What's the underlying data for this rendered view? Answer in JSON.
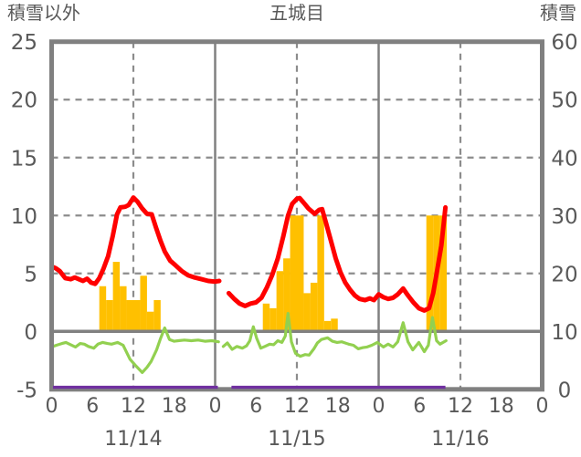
{
  "header": {
    "left_axis_title": "積雪以外",
    "chart_title": "五城目",
    "right_axis_title": "積雪"
  },
  "colors": {
    "frame": "#808080",
    "gridline": "#8c8c8c",
    "text": "#595959",
    "red_line": "#ff0000",
    "orange_bar": "#ffc000",
    "green_line": "#92d050",
    "purple_line": "#7030a0",
    "background": "#ffffff"
  },
  "chart_data": {
    "type": "composite",
    "title": "五城目",
    "left_axis": {
      "title": "積雪以外",
      "range": [
        -5,
        25
      ],
      "ticks": [
        25,
        20,
        15,
        10,
        5,
        0,
        -5
      ],
      "dashed_gridlines": [
        20,
        15,
        10,
        5
      ],
      "solid_gridlines": [
        0
      ]
    },
    "right_axis": {
      "title": "積雪",
      "range": [
        0,
        60
      ],
      "ticks": [
        60,
        50,
        40,
        30,
        20,
        10,
        0
      ]
    },
    "x_axis": {
      "range_hours": [
        0,
        72
      ],
      "tick_hours": [
        0,
        6,
        12,
        18,
        24,
        30,
        36,
        42,
        48,
        54,
        60,
        66,
        72
      ],
      "tick_labels": [
        "0",
        "6",
        "12",
        "18",
        "0",
        "6",
        "12",
        "18",
        "0",
        "6",
        "12",
        "18",
        "0"
      ],
      "date_labels": [
        "11/14",
        "11/15",
        "11/16"
      ],
      "date_center_hours": [
        12,
        36,
        60
      ],
      "solid_gridline_hours": [
        24,
        48
      ],
      "dashed_gridline_hours": [
        12,
        36,
        60
      ]
    },
    "series": [
      {
        "id": "orange-bars",
        "type": "bar",
        "axis": "left",
        "color": "#ffc000",
        "bars": [
          [
            7,
            3.9
          ],
          [
            8,
            2.7
          ],
          [
            9,
            6.0
          ],
          [
            10,
            3.9
          ],
          [
            11,
            2.7
          ],
          [
            12,
            2.7
          ],
          [
            13,
            4.8
          ],
          [
            14,
            1.7
          ],
          [
            15,
            2.7
          ],
          [
            31,
            2.4
          ],
          [
            32,
            2.0
          ],
          [
            33,
            5.2
          ],
          [
            34,
            6.3
          ],
          [
            35,
            10
          ],
          [
            36,
            10
          ],
          [
            37,
            3.3
          ],
          [
            38,
            4.2
          ],
          [
            39,
            10
          ],
          [
            40,
            0.9
          ],
          [
            41,
            1.1
          ],
          [
            55,
            10
          ],
          [
            56,
            10
          ],
          [
            57,
            10
          ]
        ]
      },
      {
        "id": "red-line",
        "type": "line",
        "axis": "left",
        "color": "#ff0000",
        "width": 5,
        "segments": [
          [
            [
              0,
              5.6
            ],
            [
              0.6,
              5.45
            ],
            [
              1.2,
              5.2
            ],
            [
              2,
              4.6
            ],
            [
              2.8,
              4.5
            ],
            [
              3.4,
              4.65
            ],
            [
              4,
              4.5
            ],
            [
              4.6,
              4.35
            ],
            [
              5.2,
              4.55
            ],
            [
              5.8,
              4.2
            ],
            [
              6.4,
              4.1
            ],
            [
              7,
              4.6
            ],
            [
              7.6,
              5.4
            ],
            [
              8.3,
              6.5
            ],
            [
              9,
              8.3
            ],
            [
              9.6,
              10.1
            ],
            [
              10.1,
              10.7
            ],
            [
              10.8,
              10.75
            ],
            [
              11.3,
              10.9
            ],
            [
              12,
              11.55
            ],
            [
              12.6,
              11.2
            ],
            [
              13.3,
              10.6
            ],
            [
              14,
              10.15
            ],
            [
              14.7,
              10.1
            ],
            [
              15.3,
              9.0
            ],
            [
              16,
              7.8
            ],
            [
              16.6,
              6.9
            ],
            [
              17.4,
              6.1
            ],
            [
              18.2,
              5.7
            ],
            [
              19.1,
              5.2
            ],
            [
              20,
              4.85
            ],
            [
              21,
              4.65
            ],
            [
              22,
              4.5
            ],
            [
              23,
              4.35
            ],
            [
              24,
              4.3
            ],
            [
              24.6,
              4.35
            ]
          ],
          [
            [
              26,
              3.3
            ],
            [
              26.8,
              2.8
            ],
            [
              27.6,
              2.4
            ],
            [
              28.4,
              2.2
            ],
            [
              29.2,
              2.4
            ],
            [
              30,
              2.5
            ],
            [
              30.8,
              2.9
            ],
            [
              31.6,
              3.8
            ],
            [
              32.4,
              4.9
            ],
            [
              33.2,
              6.3
            ],
            [
              34,
              8.2
            ],
            [
              34.7,
              10.0
            ],
            [
              35.3,
              11.0
            ],
            [
              36,
              11.45
            ],
            [
              36.4,
              11.5
            ],
            [
              37,
              11.1
            ],
            [
              37.7,
              10.6
            ],
            [
              38.6,
              10.15
            ],
            [
              39.3,
              10.5
            ],
            [
              39.7,
              10.55
            ],
            [
              40.3,
              9.3
            ],
            [
              41,
              7.8
            ],
            [
              41.7,
              6.3
            ],
            [
              42.4,
              5.1
            ],
            [
              43.1,
              4.2
            ],
            [
              43.8,
              3.6
            ],
            [
              44.5,
              3.1
            ],
            [
              45.2,
              2.8
            ],
            [
              46,
              2.7
            ],
            [
              46.7,
              2.85
            ],
            [
              47.3,
              2.7
            ],
            [
              48,
              3.2
            ],
            [
              48.7,
              2.95
            ],
            [
              49.4,
              2.8
            ],
            [
              50.1,
              2.9
            ],
            [
              50.8,
              3.2
            ],
            [
              51.6,
              3.7
            ],
            [
              52.3,
              3.1
            ],
            [
              53.1,
              2.5
            ],
            [
              53.9,
              2.0
            ],
            [
              54.7,
              1.8
            ],
            [
              55.4,
              2.0
            ],
            [
              56,
              3.3
            ],
            [
              56.6,
              5.3
            ],
            [
              57.2,
              7.4
            ],
            [
              57.8,
              10.7
            ]
          ]
        ]
      },
      {
        "id": "green-line",
        "type": "line",
        "axis": "left",
        "color": "#92d050",
        "width": 3.2,
        "segments": [
          [
            [
              0,
              -1.35
            ],
            [
              0.7,
              -1.2
            ],
            [
              1.5,
              -1.05
            ],
            [
              2.1,
              -0.95
            ],
            [
              2.8,
              -1.15
            ],
            [
              3.5,
              -1.35
            ],
            [
              4.2,
              -1.05
            ],
            [
              4.8,
              -1.1
            ],
            [
              5.4,
              -1.3
            ],
            [
              6.2,
              -1.45
            ],
            [
              6.8,
              -1.1
            ],
            [
              7.5,
              -0.95
            ],
            [
              8.2,
              -1.05
            ],
            [
              8.8,
              -1.1
            ],
            [
              9.7,
              -0.95
            ],
            [
              10.5,
              -1.2
            ],
            [
              11.5,
              -2.4
            ],
            [
              12.4,
              -3.0
            ],
            [
              13.3,
              -3.55
            ],
            [
              14,
              -3.1
            ],
            [
              14.6,
              -2.6
            ],
            [
              15.4,
              -1.6
            ],
            [
              16,
              -0.6
            ],
            [
              16.6,
              0.3
            ],
            [
              17.3,
              -0.7
            ],
            [
              18,
              -0.85
            ],
            [
              18.6,
              -0.8
            ],
            [
              19.5,
              -0.75
            ],
            [
              20.5,
              -0.8
            ],
            [
              21.5,
              -0.75
            ],
            [
              22.5,
              -0.85
            ],
            [
              23.5,
              -0.8
            ],
            [
              24.5,
              -0.9
            ]
          ],
          [
            [
              25.2,
              -1.3
            ],
            [
              25.8,
              -1.0
            ],
            [
              26.5,
              -1.55
            ],
            [
              27.2,
              -1.3
            ],
            [
              28,
              -1.45
            ],
            [
              28.6,
              -1.25
            ],
            [
              29.1,
              -0.8
            ],
            [
              29.6,
              0.4
            ],
            [
              30.1,
              -0.6
            ],
            [
              30.7,
              -1.45
            ],
            [
              31.3,
              -1.3
            ],
            [
              32,
              -1.1
            ],
            [
              32.6,
              -1.15
            ],
            [
              33.2,
              -0.8
            ],
            [
              33.8,
              -0.95
            ],
            [
              34.3,
              -0.4
            ],
            [
              34.7,
              1.55
            ],
            [
              35.2,
              -0.9
            ],
            [
              35.8,
              -1.9
            ],
            [
              36.5,
              -2.15
            ],
            [
              37.2,
              -2.0
            ],
            [
              37.8,
              -2.05
            ],
            [
              38.5,
              -1.5
            ],
            [
              39,
              -1.0
            ],
            [
              39.6,
              -0.7
            ],
            [
              40.5,
              -0.55
            ],
            [
              41.2,
              -0.85
            ],
            [
              41.9,
              -0.95
            ],
            [
              42.6,
              -0.9
            ],
            [
              43.6,
              -1.1
            ],
            [
              44.3,
              -1.2
            ],
            [
              45,
              -1.5
            ],
            [
              45.7,
              -1.4
            ],
            [
              46.3,
              -1.35
            ],
            [
              47,
              -1.2
            ],
            [
              47.8,
              -0.95
            ],
            [
              48.7,
              -1.35
            ],
            [
              49.4,
              -1.1
            ],
            [
              50.1,
              -1.35
            ],
            [
              50.8,
              -0.9
            ],
            [
              51.6,
              0.75
            ],
            [
              52.3,
              -0.9
            ],
            [
              53,
              -1.6
            ],
            [
              53.9,
              -0.95
            ],
            [
              54.7,
              -1.75
            ],
            [
              55.3,
              -1.2
            ],
            [
              55.9,
              1.2
            ],
            [
              56.5,
              -0.8
            ],
            [
              57,
              -1.1
            ],
            [
              57.9,
              -0.8
            ]
          ]
        ]
      },
      {
        "id": "purple-line",
        "type": "line",
        "axis": "right",
        "color": "#7030a0",
        "width": 3.4,
        "segments": [
          [
            [
              0.2,
              0
            ],
            [
              24.4,
              0
            ]
          ],
          [
            [
              26.4,
              0
            ],
            [
              57.8,
              0
            ]
          ]
        ]
      }
    ]
  }
}
